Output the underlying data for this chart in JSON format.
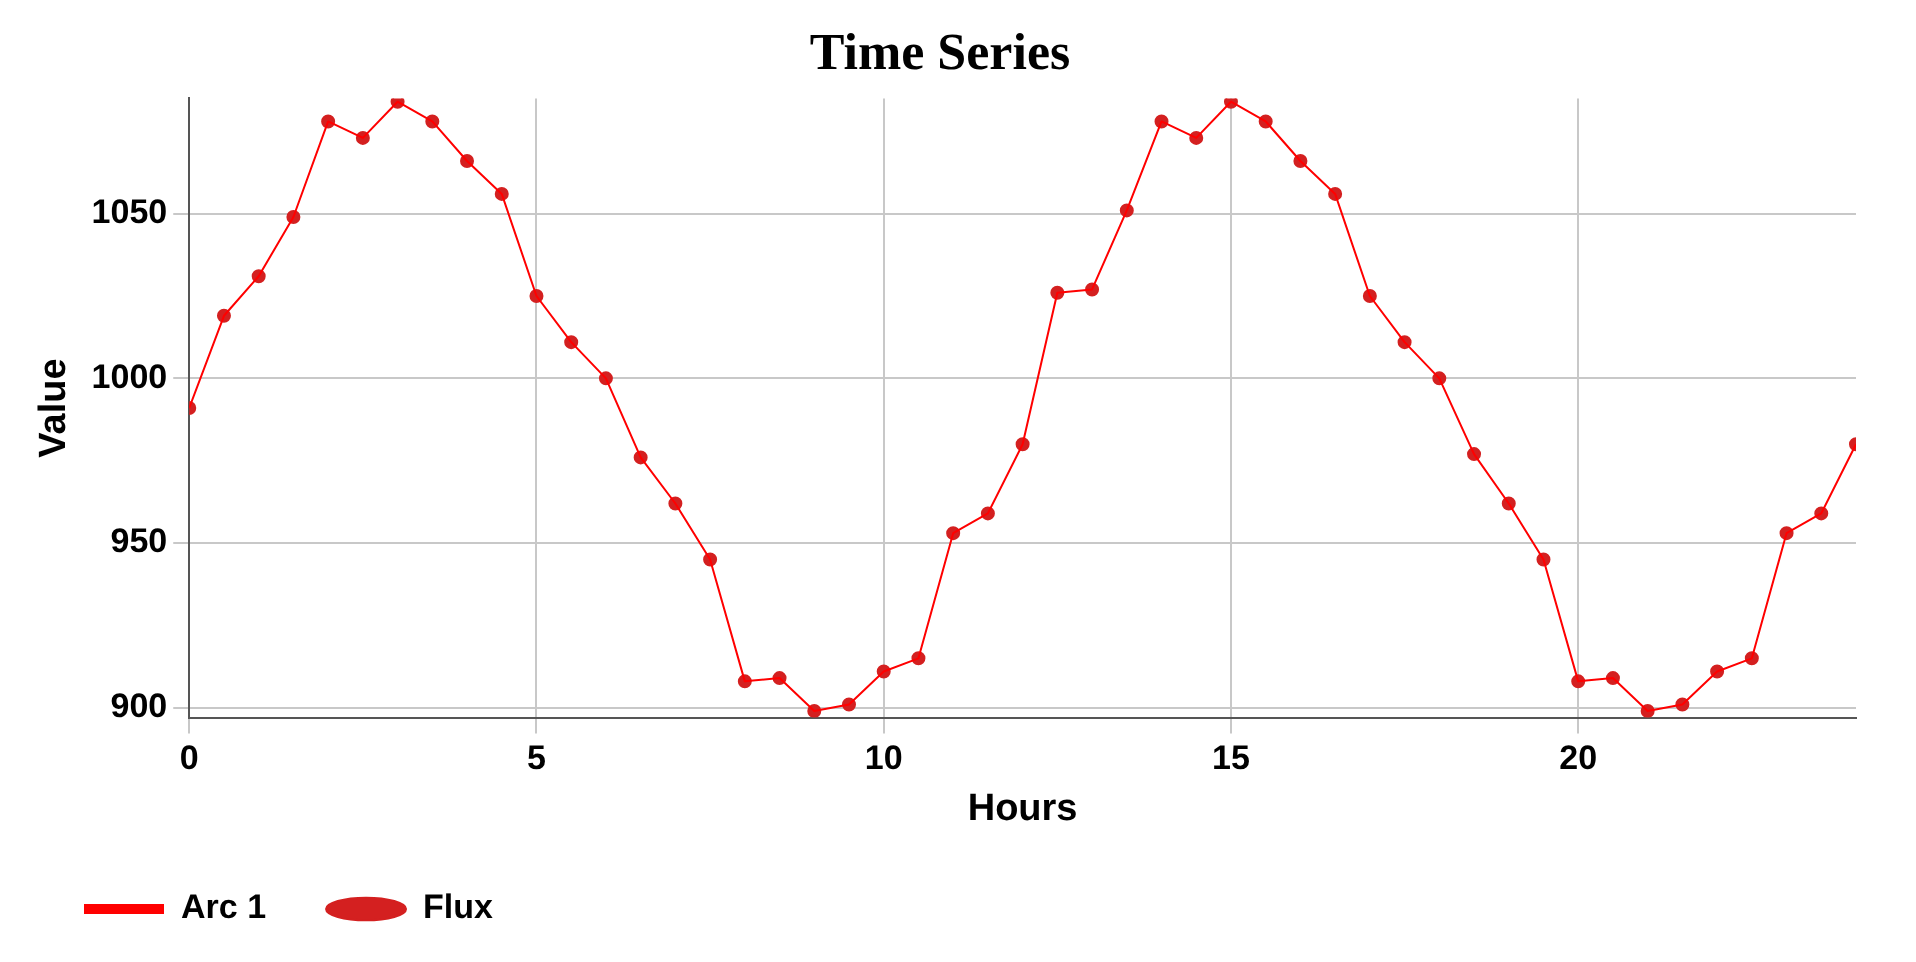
{
  "chart_data": {
    "type": "line",
    "title": "Time Series",
    "xlabel": "Hours",
    "ylabel": "Value",
    "x": [
      0,
      0.5,
      1,
      1.5,
      2,
      2.5,
      3,
      3.5,
      4,
      4.5,
      5,
      5.5,
      6,
      6.5,
      7,
      7.5,
      8,
      8.5,
      9,
      9.5,
      10,
      10.5,
      11,
      11.5,
      12,
      12.5,
      13,
      13.5,
      14,
      14.5,
      15,
      15.5,
      16,
      16.5,
      17,
      17.5,
      18,
      18.5,
      19,
      19.5,
      20,
      20.5,
      21,
      21.5,
      22,
      22.5,
      23,
      23.5,
      24
    ],
    "series": [
      {
        "name": "Arc 1",
        "type": "line",
        "color": "#ff0000",
        "marker": "none",
        "values": [
          991,
          1019,
          1031,
          1049,
          1078,
          1073,
          1084,
          1078,
          1066,
          1056,
          1025,
          1011,
          1000,
          976,
          962,
          945,
          908,
          909,
          899,
          901,
          911,
          915,
          953,
          959,
          980,
          1026,
          1027,
          1051,
          1078,
          1073,
          1084,
          1078,
          1066,
          1056,
          1025,
          1011,
          1000,
          977,
          962,
          945,
          908,
          909,
          899,
          901,
          911,
          915,
          953,
          959,
          980
        ]
      },
      {
        "name": "Flux",
        "type": "scatter",
        "color": "#d42020",
        "marker": "circle",
        "values": [
          991,
          1019,
          1031,
          1049,
          1078,
          1073,
          1084,
          1078,
          1066,
          1056,
          1025,
          1011,
          1000,
          976,
          962,
          945,
          908,
          909,
          899,
          901,
          911,
          915,
          953,
          959,
          980,
          1026,
          1027,
          1051,
          1078,
          1073,
          1084,
          1078,
          1066,
          1056,
          1025,
          1011,
          1000,
          977,
          962,
          945,
          908,
          909,
          899,
          901,
          911,
          915,
          953,
          959,
          980
        ]
      }
    ],
    "xlim": [
      0,
      24
    ],
    "xticks": [
      0,
      5,
      10,
      15,
      20
    ],
    "ylim": [
      897,
      1085
    ],
    "yticks": [
      900,
      950,
      1000,
      1050
    ],
    "grid": true,
    "legend": "bottom left"
  }
}
